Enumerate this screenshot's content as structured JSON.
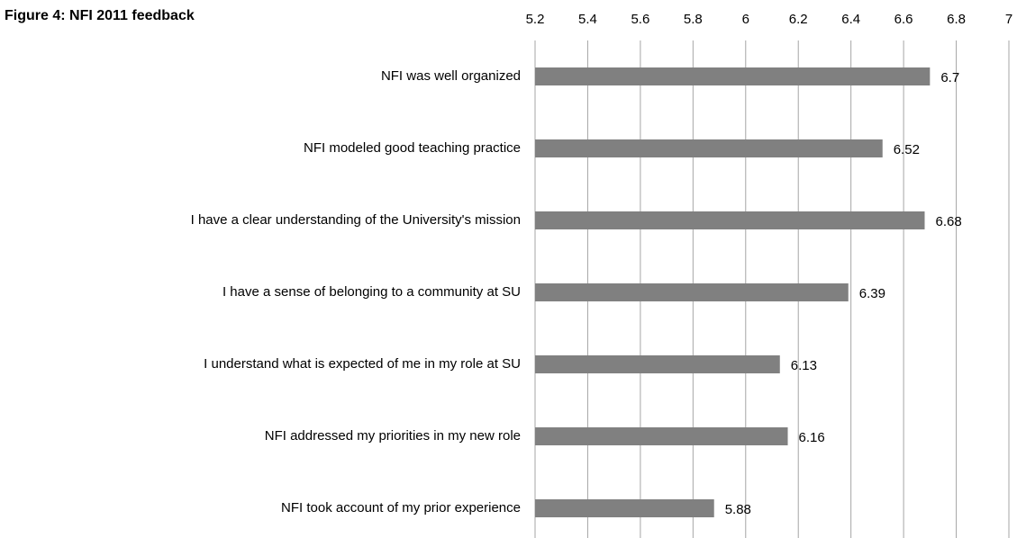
{
  "chart_data": {
    "type": "bar",
    "orientation": "horizontal",
    "title": "Figure 4: NFI 2011 feedback",
    "categories": [
      "NFI was well organized",
      "NFI modeled good teaching practice",
      "I have a clear understanding of the University's mission",
      "I have a sense of belonging to a community at SU",
      "I understand what is expected of me in my role at SU",
      "NFI addressed my priorities in my new role",
      "NFI took account of my prior experience"
    ],
    "values": [
      6.7,
      6.52,
      6.68,
      6.39,
      6.13,
      6.16,
      5.88
    ],
    "color": "#808080",
    "xlim": [
      5.2,
      7
    ],
    "xticks": [
      5.2,
      5.4,
      5.6,
      5.8,
      6,
      6.2,
      6.4,
      6.6,
      6.8,
      7
    ],
    "grid": true
  }
}
